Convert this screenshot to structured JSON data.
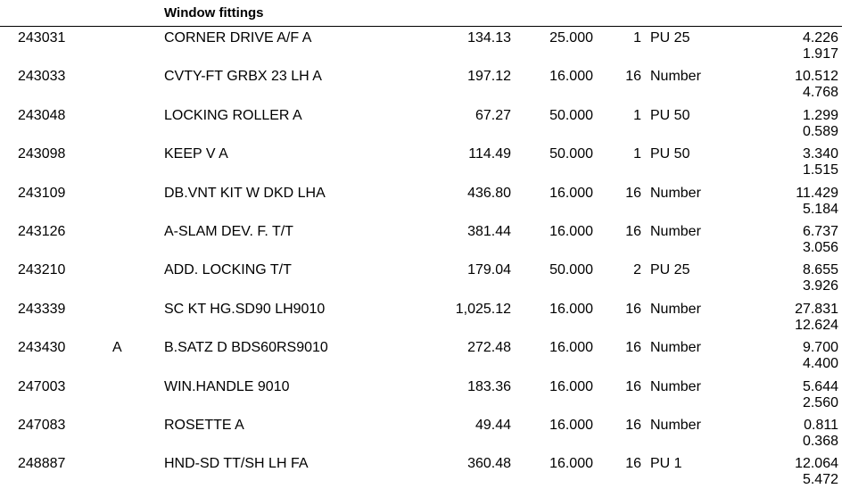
{
  "section": {
    "title": "Window fittings"
  },
  "rows": [
    {
      "code": "243031",
      "flag": "",
      "desc": "CORNER DRIVE A/F A",
      "price": "134.13",
      "qty": "25.000",
      "pu": "1",
      "unit": "PU 25",
      "v1": "4.226",
      "v2": "1.917"
    },
    {
      "code": "243033",
      "flag": "",
      "desc": "CVTY-FT GRBX 23 LH A",
      "price": "197.12",
      "qty": "16.000",
      "pu": "16",
      "unit": "Number",
      "v1": "10.512",
      "v2": "4.768"
    },
    {
      "code": "243048",
      "flag": "",
      "desc": "LOCKING ROLLER A",
      "price": "67.27",
      "qty": "50.000",
      "pu": "1",
      "unit": "PU 50",
      "v1": "1.299",
      "v2": "0.589"
    },
    {
      "code": "243098",
      "flag": "",
      "desc": "KEEP V A",
      "price": "114.49",
      "qty": "50.000",
      "pu": "1",
      "unit": "PU 50",
      "v1": "3.340",
      "v2": "1.515"
    },
    {
      "code": "243109",
      "flag": "",
      "desc": "DB.VNT KIT W DKD LHA",
      "price": "436.80",
      "qty": "16.000",
      "pu": "16",
      "unit": "Number",
      "v1": "11.429",
      "v2": "5.184"
    },
    {
      "code": "243126",
      "flag": "",
      "desc": "A-SLAM DEV. F. T/T",
      "price": "381.44",
      "qty": "16.000",
      "pu": "16",
      "unit": "Number",
      "v1": "6.737",
      "v2": "3.056"
    },
    {
      "code": "243210",
      "flag": "",
      "desc": "ADD. LOCKING T/T",
      "price": "179.04",
      "qty": "50.000",
      "pu": "2",
      "unit": "PU 25",
      "v1": "8.655",
      "v2": "3.926"
    },
    {
      "code": "243339",
      "flag": "",
      "desc": "SC KT HG.SD90 LH9010",
      "price": "1,025.12",
      "qty": "16.000",
      "pu": "16",
      "unit": "Number",
      "v1": "27.831",
      "v2": "12.624"
    },
    {
      "code": "243430",
      "flag": "A",
      "desc": "B.SATZ D BDS60RS9010",
      "price": "272.48",
      "qty": "16.000",
      "pu": "16",
      "unit": "Number",
      "v1": "9.700",
      "v2": "4.400"
    },
    {
      "code": "247003",
      "flag": "",
      "desc": "WIN.HANDLE 9010",
      "price": "183.36",
      "qty": "16.000",
      "pu": "16",
      "unit": "Number",
      "v1": "5.644",
      "v2": "2.560"
    },
    {
      "code": "247083",
      "flag": "",
      "desc": "ROSETTE A",
      "price": "49.44",
      "qty": "16.000",
      "pu": "16",
      "unit": "Number",
      "v1": "0.811",
      "v2": "0.368"
    },
    {
      "code": "248887",
      "flag": "",
      "desc": "HND-SD TT/SH LH FA",
      "price": "360.48",
      "qty": "16.000",
      "pu": "16",
      "unit": "PU 1",
      "v1": "12.064",
      "v2": "5.472"
    }
  ]
}
